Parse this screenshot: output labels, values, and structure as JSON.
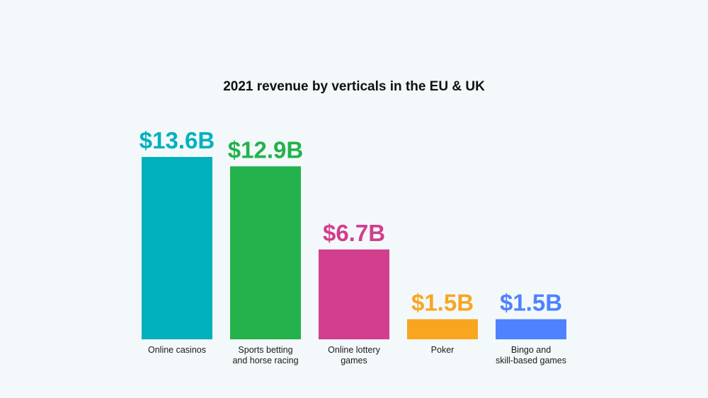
{
  "chart_data": {
    "type": "bar",
    "title": "2021 revenue by verticals in the EU & UK",
    "xlabel": "",
    "ylabel": "",
    "ylim": [
      0,
      13.6
    ],
    "grid": false,
    "legend": "none",
    "categories": [
      [
        "Online casinos"
      ],
      [
        "Sports betting",
        "and horse racing"
      ],
      [
        "Online lottery",
        "games"
      ],
      [
        "Poker"
      ],
      [
        "Bingo and",
        "skill-based games"
      ]
    ],
    "values": [
      13.6,
      12.9,
      6.7,
      1.5,
      1.5
    ],
    "value_labels": [
      "$13.6B",
      "$12.9B",
      "$6.7B",
      "$1.5B",
      "$1.5B"
    ],
    "colors": [
      "#00b1bd",
      "#23b24c",
      "#d13e8e",
      "#f8a620",
      "#4e82fe"
    ],
    "units": "USD billions"
  }
}
